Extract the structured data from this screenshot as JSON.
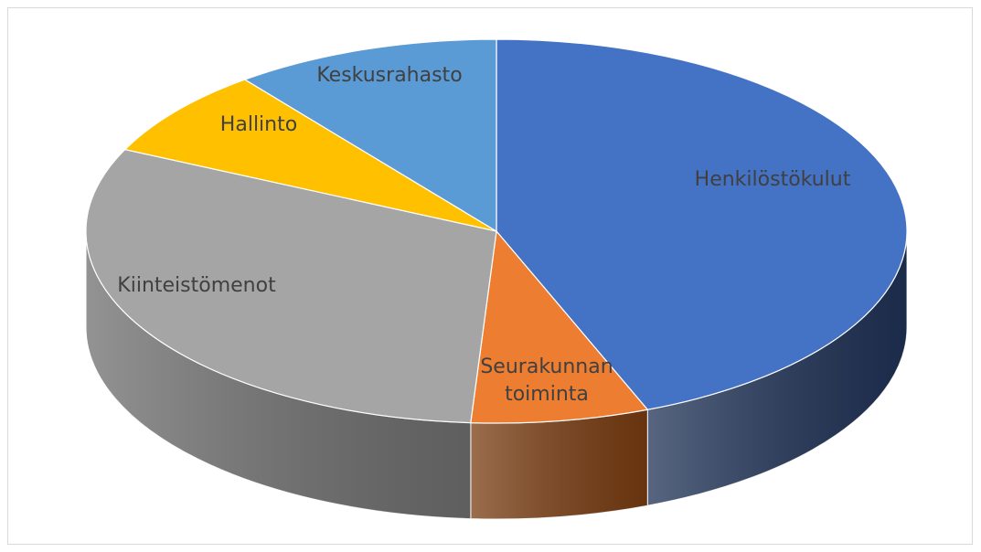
{
  "chart_data": {
    "type": "pie3d",
    "categories": [
      "Henkilöstökulut",
      "Seurakunnan toiminta",
      "Kiinteistömenot",
      "Hallinto",
      "Keskusrahasto"
    ],
    "values": [
      44,
      7,
      31,
      7.5,
      10.5
    ],
    "colors": [
      "#4472c4",
      "#ed7d31",
      "#a5a5a5",
      "#ffc000",
      "#5b9bd5"
    ],
    "side_colors": [
      "#1f3256",
      "#7a3d12",
      "#6f6f6f",
      "#b38600",
      "#3a6a96"
    ]
  }
}
